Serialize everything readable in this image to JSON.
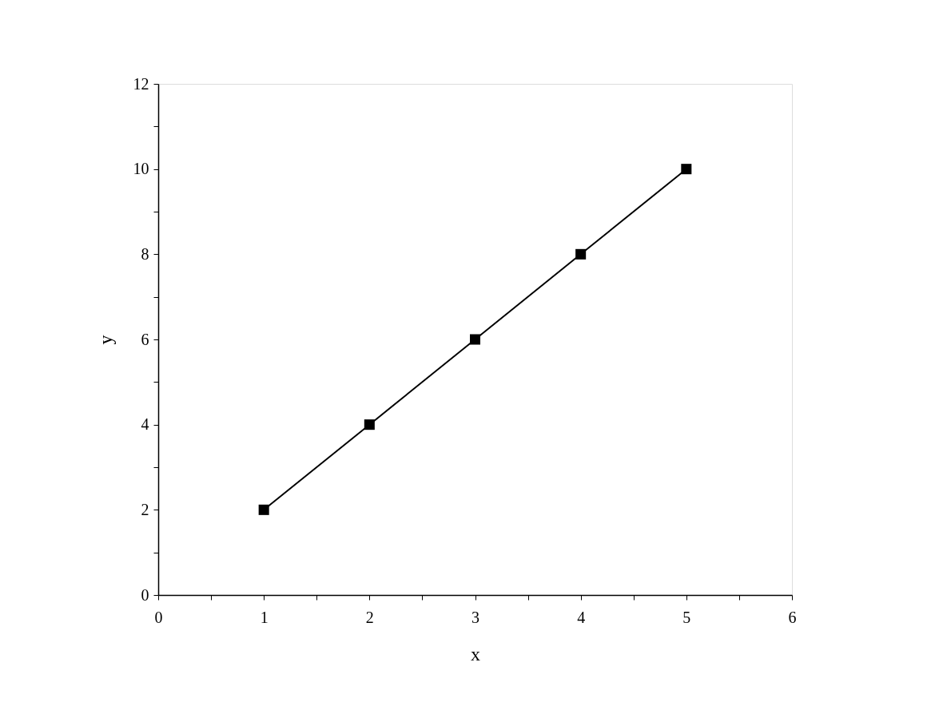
{
  "chart_data": {
    "type": "line",
    "xlabel": "x",
    "ylabel": "y",
    "x": [
      1,
      2,
      3,
      4,
      5
    ],
    "series": [
      {
        "color": "#000000",
        "values": [
          2,
          4,
          6,
          8,
          10
        ]
      }
    ],
    "xlim": [
      0,
      6
    ],
    "ylim": [
      0,
      12
    ],
    "xticks": [
      0,
      {
        "value": 0.5,
        "label": null
      },
      1,
      {
        "value": 1.5,
        "label": null
      },
      2,
      {
        "value": 2.5,
        "label": null
      },
      3,
      {
        "value": 3.5,
        "label": null
      },
      4,
      {
        "value": 4.5,
        "label": null
      },
      5,
      {
        "value": 5.5,
        "label": null
      },
      6
    ],
    "yticks": [
      0,
      {
        "value": 1,
        "label": null
      },
      2,
      {
        "value": 3,
        "label": null
      },
      4,
      {
        "value": 5,
        "label": null
      },
      6,
      {
        "value": 7,
        "label": null
      },
      8,
      {
        "value": 9,
        "label": null
      },
      10,
      {
        "value": 11,
        "label": null
      },
      12
    ],
    "grid": false,
    "legend": false,
    "marker": "square",
    "line_style": "solid"
  }
}
